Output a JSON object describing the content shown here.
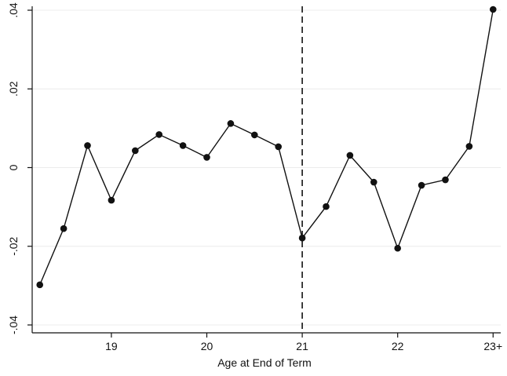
{
  "chart_data": {
    "type": "line",
    "title": "",
    "xlabel": "Age at End of Term",
    "ylabel": "",
    "xlim": [
      18.17,
      23.08
    ],
    "ylim": [
      -0.042,
      0.041
    ],
    "x_ticks": [
      {
        "value": 19,
        "label": "19"
      },
      {
        "value": 20,
        "label": "20"
      },
      {
        "value": 21,
        "label": "21"
      },
      {
        "value": 22,
        "label": "22"
      },
      {
        "value": 23,
        "label": "23+"
      }
    ],
    "y_ticks": [
      {
        "value": -0.04,
        "label": "-.04"
      },
      {
        "value": -0.02,
        "label": "-.02"
      },
      {
        "value": 0,
        "label": "0"
      },
      {
        "value": 0.02,
        "label": ".02"
      },
      {
        "value": 0.04,
        "label": ".04"
      }
    ],
    "grid": true,
    "reference_line": {
      "axis": "x",
      "value": 21,
      "style": "dashed"
    },
    "series": [
      {
        "x": [
          18.25,
          18.5,
          18.75,
          19.0,
          19.25,
          19.5,
          19.75,
          20.0,
          20.25,
          20.5,
          20.75,
          21.0,
          21.25,
          21.5,
          21.75,
          22.0,
          22.25,
          22.5,
          22.75,
          23.0
        ],
        "y": [
          -0.0298,
          -0.0155,
          0.0056,
          -0.0083,
          0.0043,
          0.0084,
          0.0056,
          0.0026,
          0.0112,
          0.0083,
          0.0053,
          -0.0179,
          -0.0099,
          0.0031,
          -0.0037,
          -0.0205,
          -0.0045,
          -0.0031,
          0.0054,
          0.0402
        ]
      }
    ]
  }
}
